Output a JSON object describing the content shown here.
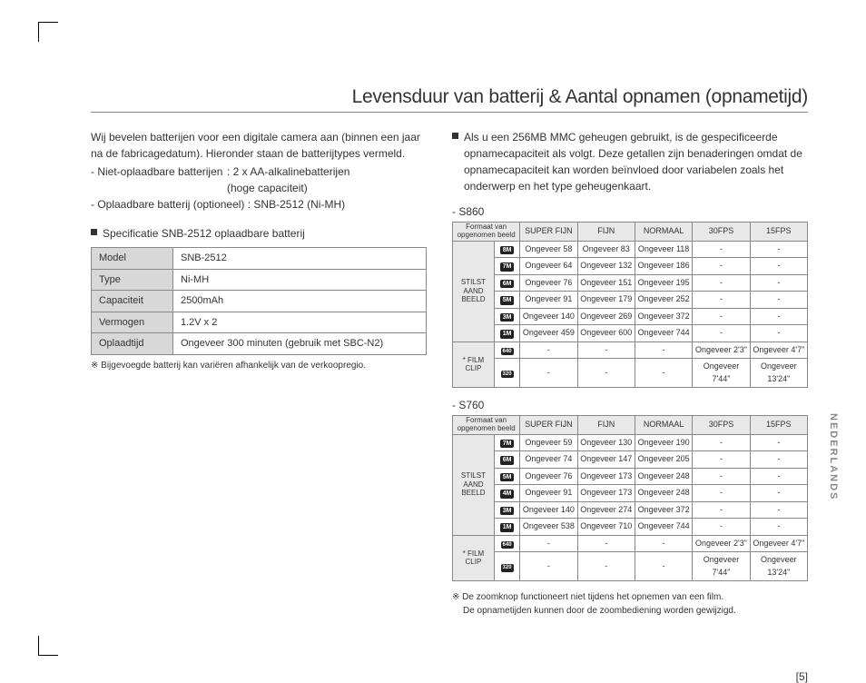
{
  "title": "Levensduur van batterij & Aantal opnamen (opnametijd)",
  "left": {
    "intro1": "Wij bevelen batterijen voor een digitale camera aan (binnen een jaar na de fabricagedatum). Hieronder staan de batterijtypes vermeld.",
    "b1a": "- Niet-oplaadbare batterijen",
    "b1b": ": 2 x  AA-alkalinebatterijen",
    "b1c": "(hoge capaciteit)",
    "b2": "- Oplaadbare batterij (optioneel)  : SNB-2512 (Ni-MH)",
    "specTitle": "Specificatie SNB-2512 oplaadbare batterij",
    "spec": [
      [
        "Model",
        "SNB-2512"
      ],
      [
        "Type",
        "Ni-MH"
      ],
      [
        "Capaciteit",
        "2500mAh"
      ],
      [
        "Vermogen",
        "1.2V x 2"
      ],
      [
        "Oplaadtijd",
        "Ongeveer 300 minuten (gebruik met SBC-N2)"
      ]
    ],
    "note": "※ Bijgevoegde batterij kan variëren afhankelijk van de verkoopregio."
  },
  "right": {
    "intro": "Als u een 256MB MMC geheugen gebruikt, is de gespecificeerde opnamecapaciteit als volgt. Deze getallen zijn benaderingen omdat de opnamecapaciteit kan worden beïnvloed door variabelen zoals het onderwerp en het type geheugenkaart.",
    "m1": "- S860",
    "m2": "- S760",
    "headers": [
      "SUPER FIJN",
      "FIJN",
      "NORMAAL",
      "30FPS",
      "15FPS"
    ],
    "hdrL1": "Formaat van",
    "hdrL2": "opgenomen beeld",
    "rowStill": "STILST\nAAND\nBEELD",
    "rowFilm": "* FILM\nCLIP",
    "s860": {
      "icons": [
        "8M",
        "7M",
        "6M",
        "5M",
        "3M",
        "1M",
        "640",
        "320"
      ],
      "rows": [
        [
          "Ongeveer 58",
          "Ongeveer 83",
          "Ongeveer 118",
          "-",
          "-"
        ],
        [
          "Ongeveer 64",
          "Ongeveer 132",
          "Ongeveer 186",
          "-",
          "-"
        ],
        [
          "Ongeveer 76",
          "Ongeveer 151",
          "Ongeveer 195",
          "-",
          "-"
        ],
        [
          "Ongeveer 91",
          "Ongeveer 179",
          "Ongeveer 252",
          "-",
          "-"
        ],
        [
          "Ongeveer 140",
          "Ongeveer 269",
          "Ongeveer 372",
          "-",
          "-"
        ],
        [
          "Ongeveer 459",
          "Ongeveer 600",
          "Ongeveer 744",
          "-",
          "-"
        ],
        [
          "-",
          "-",
          "-",
          "Ongeveer 2'3\"",
          "Ongeveer 4'7\""
        ],
        [
          "-",
          "-",
          "-",
          "Ongeveer 7'44\"",
          "Ongeveer 13'24\""
        ]
      ]
    },
    "s760": {
      "icons": [
        "7M",
        "6M",
        "5M",
        "4M",
        "3M",
        "1M",
        "640",
        "320"
      ],
      "rows": [
        [
          "Ongeveer 59",
          "Ongeveer 130",
          "Ongeveer 190",
          "-",
          "-"
        ],
        [
          "Ongeveer 74",
          "Ongeveer 147",
          "Ongeveer 205",
          "-",
          "-"
        ],
        [
          "Ongeveer 76",
          "Ongeveer 173",
          "Ongeveer 248",
          "-",
          "-"
        ],
        [
          "Ongeveer 91",
          "Ongeveer 173",
          "Ongeveer 248",
          "-",
          "-"
        ],
        [
          "Ongeveer 140",
          "Ongeveer 274",
          "Ongeveer 372",
          "-",
          "-"
        ],
        [
          "Ongeveer 538",
          "Ongeveer 710",
          "Ongeveer 744",
          "-",
          "-"
        ],
        [
          "-",
          "-",
          "-",
          "Ongeveer 2'3\"",
          "Ongeveer 4'7\""
        ],
        [
          "-",
          "-",
          "-",
          "Ongeveer 7'44\"",
          "Ongeveer 13'24\""
        ]
      ]
    },
    "foot1": "※ De zoomknop functioneert niet tijdens het opnemen van een film.",
    "foot2": "De opnametijden kunnen door de zoombediening worden gewijzigd."
  },
  "pagenum": "[5]",
  "sidelabel": "NEDERLANDS"
}
